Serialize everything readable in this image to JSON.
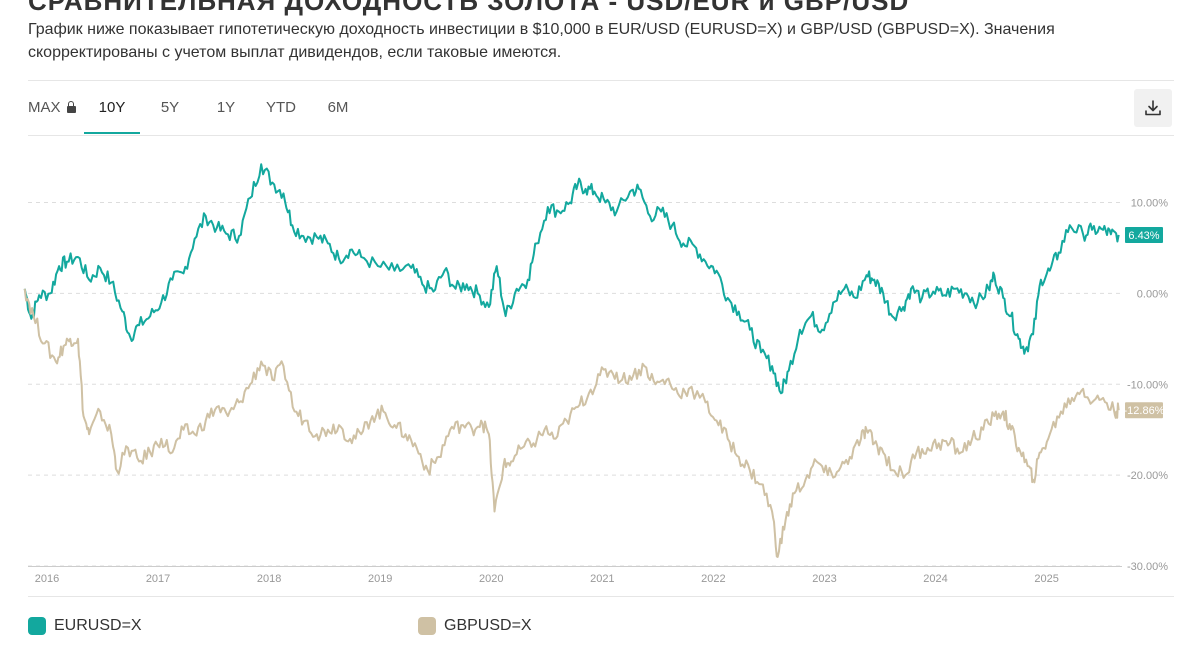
{
  "header": {
    "clipped_title": "СРАВНИТЕЛЬНАЯ ДОХОДНОСТЬ ЗОЛОТА - USD/EUR и GBP/USD",
    "description": "График ниже показывает гипотетическую доходность инвестиции в $10,000 в EUR/USD (EURUSD=X) и GBP/USD (GBPUSD=X). Значения скорректированы с учетом выплат дивидендов, если таковые имеются."
  },
  "tabs": [
    {
      "label": "MAX",
      "locked": true
    },
    {
      "label": "10Y",
      "active": true
    },
    {
      "label": "5Y"
    },
    {
      "label": "1Y"
    },
    {
      "label": "YTD"
    },
    {
      "label": "6M"
    }
  ],
  "colors": {
    "eur": "#13a89e",
    "gbp": "#cfc1a4",
    "grid": "#dddddd",
    "axis_text": "#999999"
  },
  "icons": {
    "download": "download-icon",
    "lock": "lock-icon"
  },
  "chart_data": {
    "type": "line",
    "title": "",
    "xlabel": "",
    "ylabel": "",
    "x_ticks": [
      "2016",
      "2017",
      "2018",
      "2019",
      "2020",
      "2021",
      "2022",
      "2023",
      "2024",
      "2025"
    ],
    "x_range": [
      2016.0,
      2025.85
    ],
    "ylim": [
      -30,
      15
    ],
    "y_ticks": [
      10,
      0,
      -10,
      -20,
      -30
    ],
    "y_tick_labels": [
      "10.00%",
      "0.00%",
      "-10.00%",
      "-20.00%",
      "-30.00%"
    ],
    "grid": true,
    "series": [
      {
        "name": "EURUSD=X",
        "color": "#13a89e",
        "last_label": "6.43%",
        "last_value": 6.43,
        "points": [
          [
            2015.97,
            0.5
          ],
          [
            2016.03,
            -2.8
          ],
          [
            2016.1,
            -0.2
          ],
          [
            2016.2,
            0.0
          ],
          [
            2016.28,
            3.0
          ],
          [
            2016.35,
            3.5
          ],
          [
            2016.45,
            4.0
          ],
          [
            2016.55,
            1.5
          ],
          [
            2016.65,
            2.8
          ],
          [
            2016.75,
            1.2
          ],
          [
            2016.85,
            -2.0
          ],
          [
            2016.92,
            -4.8
          ],
          [
            2017.0,
            -3.5
          ],
          [
            2017.1,
            -2.5
          ],
          [
            2017.2,
            -1.0
          ],
          [
            2017.3,
            1.5
          ],
          [
            2017.4,
            2.2
          ],
          [
            2017.5,
            6.0
          ],
          [
            2017.6,
            8.5
          ],
          [
            2017.7,
            7.2
          ],
          [
            2017.8,
            6.5
          ],
          [
            2017.9,
            6.3
          ],
          [
            2018.0,
            10.5
          ],
          [
            2018.1,
            14.2
          ],
          [
            2018.2,
            12.2
          ],
          [
            2018.3,
            11.0
          ],
          [
            2018.38,
            7.5
          ],
          [
            2018.48,
            6.3
          ],
          [
            2018.6,
            6.2
          ],
          [
            2018.7,
            5.5
          ],
          [
            2018.8,
            3.8
          ],
          [
            2018.9,
            4.8
          ],
          [
            2019.0,
            4.0
          ],
          [
            2019.15,
            3.0
          ],
          [
            2019.3,
            2.5
          ],
          [
            2019.45,
            2.8
          ],
          [
            2019.55,
            1.0
          ],
          [
            2019.65,
            0.2
          ],
          [
            2019.75,
            2.5
          ],
          [
            2019.85,
            0.5
          ],
          [
            2019.95,
            1.0
          ],
          [
            2020.05,
            0.0
          ],
          [
            2020.15,
            -1.5
          ],
          [
            2020.22,
            3.0
          ],
          [
            2020.3,
            -2.5
          ],
          [
            2020.4,
            0.5
          ],
          [
            2020.5,
            1.5
          ],
          [
            2020.58,
            5.5
          ],
          [
            2020.68,
            9.5
          ],
          [
            2020.78,
            9.0
          ],
          [
            2020.88,
            10.0
          ],
          [
            2020.95,
            12.0
          ],
          [
            2021.02,
            11.5
          ],
          [
            2021.1,
            11.2
          ],
          [
            2021.2,
            10.0
          ],
          [
            2021.3,
            9.0
          ],
          [
            2021.42,
            11.2
          ],
          [
            2021.5,
            11.5
          ],
          [
            2021.6,
            8.5
          ],
          [
            2021.7,
            9.0
          ],
          [
            2021.8,
            7.5
          ],
          [
            2021.9,
            5.5
          ],
          [
            2022.0,
            5.2
          ],
          [
            2022.1,
            3.5
          ],
          [
            2022.2,
            2.5
          ],
          [
            2022.3,
            -0.5
          ],
          [
            2022.4,
            -2.0
          ],
          [
            2022.5,
            -4.0
          ],
          [
            2022.6,
            -6.5
          ],
          [
            2022.7,
            -8.0
          ],
          [
            2022.78,
            -11.0
          ],
          [
            2022.85,
            -8.5
          ],
          [
            2022.95,
            -4.0
          ],
          [
            2023.05,
            -2.5
          ],
          [
            2023.15,
            -4.0
          ],
          [
            2023.25,
            -1.0
          ],
          [
            2023.35,
            0.5
          ],
          [
            2023.45,
            -0.5
          ],
          [
            2023.55,
            2.0
          ],
          [
            2023.62,
            1.5
          ],
          [
            2023.7,
            0.0
          ],
          [
            2023.78,
            -2.5
          ],
          [
            2023.88,
            -1.5
          ],
          [
            2023.95,
            0.5
          ],
          [
            2024.05,
            -0.5
          ],
          [
            2024.15,
            0.2
          ],
          [
            2024.25,
            -0.2
          ],
          [
            2024.35,
            0.5
          ],
          [
            2024.45,
            0.0
          ],
          [
            2024.55,
            -1.0
          ],
          [
            2024.65,
            0.5
          ],
          [
            2024.7,
            2.0
          ],
          [
            2024.78,
            -0.5
          ],
          [
            2024.85,
            -2.5
          ],
          [
            2024.92,
            -5.0
          ],
          [
            2024.98,
            -6.2
          ],
          [
            2025.05,
            -4.5
          ],
          [
            2025.12,
            1.5
          ],
          [
            2025.2,
            2.5
          ],
          [
            2025.28,
            4.5
          ],
          [
            2025.38,
            7.5
          ],
          [
            2025.5,
            6.5
          ],
          [
            2025.58,
            7.0
          ],
          [
            2025.68,
            7.0
          ],
          [
            2025.75,
            6.5
          ],
          [
            2025.82,
            6.43
          ]
        ]
      },
      {
        "name": "GBPUSD=X",
        "color": "#cfc1a4",
        "last_label": "-12.86%",
        "last_value": -12.86,
        "points": [
          [
            2015.97,
            0.5
          ],
          [
            2016.05,
            -2.5
          ],
          [
            2016.15,
            -5.5
          ],
          [
            2016.25,
            -7.5
          ],
          [
            2016.32,
            -5.8
          ],
          [
            2016.38,
            -5.0
          ],
          [
            2016.45,
            -5.0
          ],
          [
            2016.5,
            -13.5
          ],
          [
            2016.55,
            -15.5
          ],
          [
            2016.65,
            -13.0
          ],
          [
            2016.75,
            -15.5
          ],
          [
            2016.8,
            -19.5
          ],
          [
            2016.9,
            -17.0
          ],
          [
            2017.0,
            -18.5
          ],
          [
            2017.1,
            -17.5
          ],
          [
            2017.2,
            -16.0
          ],
          [
            2017.3,
            -17.5
          ],
          [
            2017.4,
            -15.0
          ],
          [
            2017.5,
            -15.5
          ],
          [
            2017.6,
            -14.0
          ],
          [
            2017.7,
            -12.5
          ],
          [
            2017.8,
            -13.5
          ],
          [
            2017.9,
            -12.0
          ],
          [
            2018.0,
            -10.0
          ],
          [
            2018.1,
            -7.5
          ],
          [
            2018.2,
            -9.5
          ],
          [
            2018.3,
            -8.0
          ],
          [
            2018.4,
            -13.0
          ],
          [
            2018.5,
            -14.0
          ],
          [
            2018.6,
            -15.5
          ],
          [
            2018.7,
            -15.0
          ],
          [
            2018.8,
            -14.5
          ],
          [
            2018.9,
            -16.0
          ],
          [
            2019.0,
            -15.5
          ],
          [
            2019.1,
            -13.5
          ],
          [
            2019.2,
            -13.0
          ],
          [
            2019.3,
            -14.5
          ],
          [
            2019.4,
            -15.5
          ],
          [
            2019.5,
            -17.0
          ],
          [
            2019.6,
            -19.5
          ],
          [
            2019.7,
            -18.0
          ],
          [
            2019.8,
            -15.0
          ],
          [
            2019.9,
            -14.5
          ],
          [
            2020.0,
            -15.0
          ],
          [
            2020.08,
            -14.0
          ],
          [
            2020.15,
            -15.5
          ],
          [
            2020.2,
            -24.0
          ],
          [
            2020.28,
            -19.0
          ],
          [
            2020.35,
            -18.5
          ],
          [
            2020.45,
            -17.0
          ],
          [
            2020.55,
            -16.5
          ],
          [
            2020.65,
            -15.0
          ],
          [
            2020.75,
            -16.0
          ],
          [
            2020.85,
            -14.0
          ],
          [
            2020.95,
            -12.5
          ],
          [
            2021.05,
            -11.0
          ],
          [
            2021.15,
            -9.0
          ],
          [
            2021.25,
            -8.5
          ],
          [
            2021.35,
            -9.5
          ],
          [
            2021.45,
            -9.0
          ],
          [
            2021.55,
            -8.0
          ],
          [
            2021.65,
            -10.0
          ],
          [
            2021.75,
            -9.5
          ],
          [
            2021.85,
            -11.0
          ],
          [
            2021.95,
            -10.5
          ],
          [
            2022.1,
            -12.0
          ],
          [
            2022.2,
            -14.0
          ],
          [
            2022.3,
            -16.0
          ],
          [
            2022.4,
            -18.0
          ],
          [
            2022.5,
            -19.5
          ],
          [
            2022.6,
            -21.0
          ],
          [
            2022.7,
            -24.0
          ],
          [
            2022.75,
            -29.0
          ],
          [
            2022.82,
            -25.0
          ],
          [
            2022.9,
            -22.0
          ],
          [
            2023.0,
            -20.5
          ],
          [
            2023.1,
            -18.5
          ],
          [
            2023.2,
            -20.0
          ],
          [
            2023.3,
            -19.5
          ],
          [
            2023.4,
            -18.0
          ],
          [
            2023.5,
            -16.0
          ],
          [
            2023.55,
            -15.0
          ],
          [
            2023.62,
            -16.5
          ],
          [
            2023.7,
            -17.5
          ],
          [
            2023.8,
            -19.5
          ],
          [
            2023.9,
            -20.0
          ],
          [
            2024.0,
            -17.5
          ],
          [
            2024.1,
            -17.0
          ],
          [
            2024.2,
            -16.5
          ],
          [
            2024.3,
            -16.5
          ],
          [
            2024.4,
            -17.5
          ],
          [
            2024.5,
            -16.0
          ],
          [
            2024.6,
            -15.0
          ],
          [
            2024.7,
            -13.5
          ],
          [
            2024.78,
            -13.0
          ],
          [
            2024.85,
            -15.0
          ],
          [
            2024.92,
            -17.0
          ],
          [
            2025.0,
            -19.0
          ],
          [
            2025.05,
            -20.5
          ],
          [
            2025.12,
            -17.5
          ],
          [
            2025.2,
            -15.5
          ],
          [
            2025.3,
            -13.0
          ],
          [
            2025.4,
            -11.5
          ],
          [
            2025.5,
            -10.5
          ],
          [
            2025.58,
            -12.0
          ],
          [
            2025.68,
            -11.5
          ],
          [
            2025.78,
            -13.0
          ],
          [
            2025.82,
            -12.86
          ]
        ]
      }
    ]
  }
}
